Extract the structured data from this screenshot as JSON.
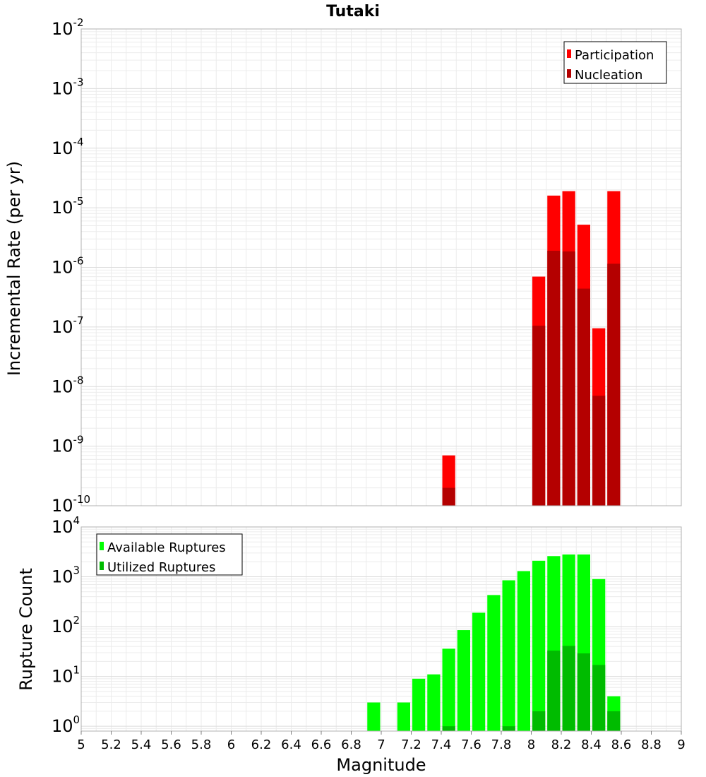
{
  "chart_data": [
    {
      "type": "bar",
      "title": "Tutaki",
      "xlabel": "Magnitude",
      "ylabel": "Incremental Rate (per yr)",
      "yscale": "log",
      "ylim": [
        1e-10,
        0.01
      ],
      "xlim": [
        5,
        9
      ],
      "bin_width": 0.1,
      "y_tick_bases": [
        "10",
        "10",
        "10",
        "10",
        "10",
        "10",
        "10",
        "10",
        "10"
      ],
      "y_tick_exponents": [
        "-10",
        "-9",
        "-8",
        "-7",
        "-6",
        "-5",
        "-4",
        "-3",
        "-2"
      ],
      "x": [
        7.45,
        8.05,
        8.15,
        8.25,
        8.35,
        8.45,
        8.55
      ],
      "series": [
        {
          "name": "Participation",
          "color": "#ff0000",
          "values": [
            7e-10,
            7e-07,
            1.6e-05,
            1.9e-05,
            5.2e-06,
            9.5e-08,
            1.9e-05
          ]
        },
        {
          "name": "Nucleation",
          "color": "#b40000",
          "values": [
            2e-10,
            1.05e-07,
            1.9e-06,
            1.85e-06,
            4.4e-07,
            7e-09,
            1.15e-06
          ]
        }
      ],
      "legend": {
        "position": "top-right"
      }
    },
    {
      "type": "bar",
      "xlabel": "Magnitude",
      "ylabel": "Rupture Count",
      "yscale": "log",
      "ylim": [
        0.8,
        10000
      ],
      "xlim": [
        5,
        9
      ],
      "bin_width": 0.1,
      "y_tick_bases": [
        "10",
        "10",
        "10",
        "10",
        "10"
      ],
      "y_tick_exponents": [
        "0",
        "1",
        "2",
        "3",
        "4"
      ],
      "x_ticks": [
        "5",
        "5.2",
        "5.4",
        "5.6",
        "5.8",
        "6",
        "6.2",
        "6.4",
        "6.6",
        "6.8",
        "7",
        "7.2",
        "7.4",
        "7.6",
        "7.8",
        "8",
        "8.2",
        "8.4",
        "8.6",
        "8.8",
        "9"
      ],
      "x": [
        6.95,
        7.15,
        7.25,
        7.35,
        7.45,
        7.55,
        7.65,
        7.75,
        7.85,
        7.95,
        8.05,
        8.15,
        8.25,
        8.35,
        8.45,
        8.55
      ],
      "series": [
        {
          "name": "Available Ruptures",
          "color": "#00ff00",
          "values": [
            3,
            3,
            9,
            11,
            36,
            85,
            190,
            430,
            850,
            1300,
            2100,
            2600,
            2800,
            2800,
            900,
            4
          ]
        },
        {
          "name": "Utilized Ruptures",
          "color": "#00bb00",
          "values": [
            0,
            0,
            0,
            0,
            1,
            0,
            0,
            0,
            1,
            0,
            2,
            33,
            41,
            29,
            17,
            2
          ]
        }
      ],
      "legend": {
        "position": "top-left"
      }
    }
  ]
}
